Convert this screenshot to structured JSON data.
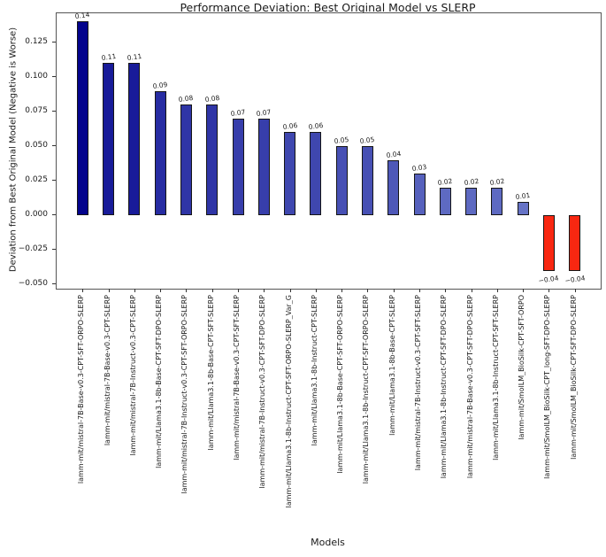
{
  "chart_data": {
    "type": "bar",
    "title": "Performance Deviation: Best Original Model vs SLERP",
    "xlabel": "Models",
    "ylabel": "Deviation from Best Original Model (Negative is Worse)",
    "grid": false,
    "legend": null,
    "ylim": [
      -0.053,
      0.146
    ],
    "yticks": [
      0.125,
      0.1,
      0.075,
      0.05,
      0.025,
      0.0,
      -0.025,
      -0.05
    ],
    "ytick_labels": [
      "0.125",
      "0.100",
      "0.075",
      "0.050",
      "0.025",
      "0.000",
      "−0.025",
      "−0.050"
    ],
    "categories": [
      "lamm-mit/mistral-7B-Base-v0.3-CPT-SFT-ORPO-SLERP",
      "lamm-mit/mistral-7B-Base-v0.3-CPT-SLERP",
      "lamm-mit/mistral-7B-Instruct-v0.3-CPT-SLERP",
      "lamm-mit/Llama3.1-8b-Base-CPT-SFT-DPO-SLERP",
      "lamm-mit/mistral-7B-Instruct-v0.3-CPT-SFT-ORPO-SLERP",
      "lamm-mit/Llama3.1-8b-Base-CPT-SFT-SLERP",
      "lamm-mit/mistral-7B-Base-v0.3-CPT-SFT-SLERP",
      "lamm-mit/mistral-7B-Instruct-v0.3-CPT-SFT-DPO-SLERP",
      "lamm-mit/Llama3.1-8b-Instruct-CPT-SFT-ORPO-SLERP_Var_G",
      "lamm-mit/Llama3.1-8b-Instruct-CPT-SLERP",
      "lamm-mit/Llama3.1-8b-Base-CPT-SFT-ORPO-SLERP",
      "lamm-mit/Llama3.1-8b-Instruct-CPT-SFT-ORPO-SLERP",
      "lamm-mit/Llama3.1-8b-Base-CPT-SLERP",
      "lamm-mit/mistral-7B-Instruct-v0.3-CPT-SFT-SLERP",
      "lamm-mit/Llama3.1-8b-Instruct-CPT-SFT-DPO-SLERP",
      "lamm-mit/mistral-7B-Base-v0.3-CPT-SFT-DPO-SLERP",
      "lamm-mit/Llama3.1-8b-Instruct-CPT-SFT-SLERP",
      "lamm-mit/SmolLM_BioSilk-CPT-SFT-ORPO",
      "lamm-mit/SmolLM_BioSilk-CPT_long-SFT-DPO-SLERP",
      "lamm-mit/SmolLM_BioSilk-CPT-SFT-DPO-SLERP"
    ],
    "values": [
      0.14,
      0.11,
      0.11,
      0.09,
      0.08,
      0.08,
      0.07,
      0.07,
      0.06,
      0.06,
      0.05,
      0.05,
      0.04,
      0.03,
      0.02,
      0.02,
      0.02,
      0.01,
      -0.04,
      -0.04
    ],
    "bar_value_labels": [
      "0.14",
      "0.11",
      "0.11",
      "0.09",
      "0.08",
      "0.08",
      "0.07",
      "0.07",
      "0.06",
      "0.06",
      "0.05",
      "0.05",
      "0.04",
      "0.03",
      "0.02",
      "0.02",
      "0.02",
      "0.01",
      "−0.04",
      "−0.04"
    ],
    "bar_colors": [
      "#03038c",
      "#181b99",
      "#181b99",
      "#272ca2",
      "#2f35a6",
      "#2f35a6",
      "#373eab",
      "#373eab",
      "#3f47af",
      "#3f47af",
      "#4750b4",
      "#4750b4",
      "#4e58b8",
      "#5661bd",
      "#5e6ac2",
      "#5e6ac2",
      "#5e6ac2",
      "#6673c6",
      "#f82711",
      "#f82711"
    ],
    "colors": {
      "positive_dark": "#03038c",
      "positive_light": "#6673c6",
      "negative": "#f82711",
      "bar_edge": "#151515",
      "axis": "#555555"
    }
  }
}
